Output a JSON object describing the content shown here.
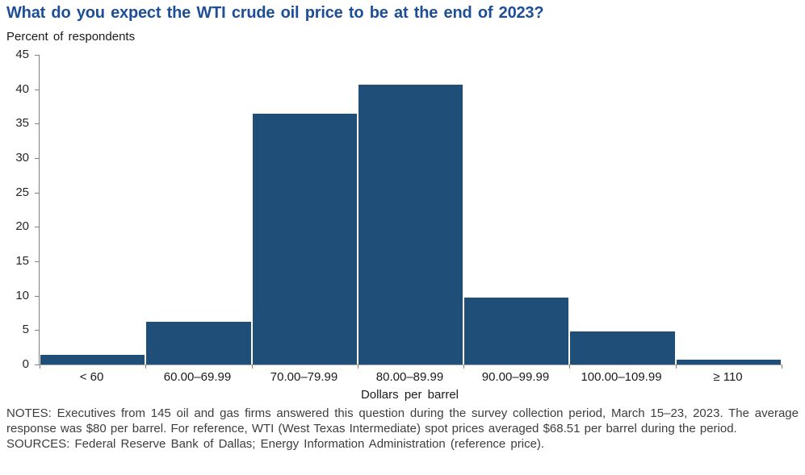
{
  "header": {
    "title": "What do you expect the WTI crude oil price to be at the end of 2023?",
    "units_label": "Percent of respondents"
  },
  "chart_data": {
    "type": "bar",
    "title": "What do you expect the WTI crude oil price to be at the end of 2023?",
    "ylabel": "Percent of respondents",
    "xlabel": "Dollars per barrel",
    "categories": [
      "< 60",
      "60.00–69.99",
      "70.00–79.99",
      "80.00–89.99",
      "90.00–99.99",
      "100.00–109.99",
      "≥ 110"
    ],
    "values": [
      1.4,
      6.2,
      36.5,
      40.7,
      9.7,
      4.8,
      0.7
    ],
    "ylim": [
      0,
      45
    ],
    "yticks": [
      0,
      5,
      10,
      15,
      20,
      25,
      30,
      35,
      40,
      45
    ],
    "grid": false,
    "legend": "none",
    "bar_color": "#1f4e79"
  },
  "footer": {
    "notes": "NOTES: Executives from 145 oil and gas firms answered this question during the survey collection period, March 15–23, 2023. The average response was $80 per barrel. For reference, WTI (West Texas Intermediate) spot prices averaged $68.51 per barrel during the period.",
    "sources": "SOURCES: Federal Reserve Bank of Dallas; Energy Information Administration (reference price)."
  },
  "colors": {
    "title_blue": "#1e4e96",
    "bar_blue": "#1f4e79",
    "axis_gray": "#808080",
    "baseline_gray": "#a6a6a6",
    "text_dark": "#3d3d3d"
  }
}
